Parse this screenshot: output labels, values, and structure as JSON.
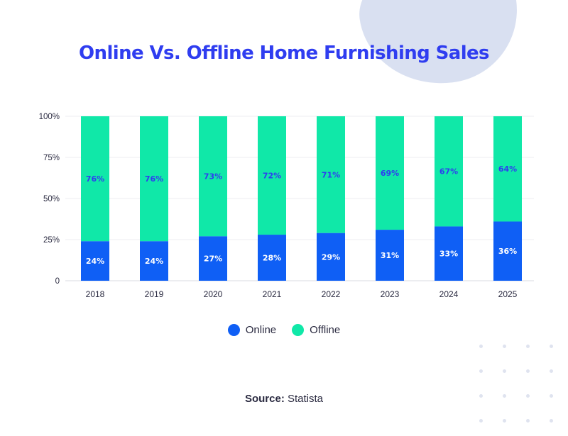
{
  "title": "Online Vs. Offline Home Furnishing Sales",
  "source": {
    "label": "Source:",
    "value": "Statista"
  },
  "colors": {
    "online": "#0f5ff5",
    "offline": "#10e8a8",
    "title": "#2f3df0",
    "label_on_offline": "#2f3df0",
    "label_on_online": "#ffffff"
  },
  "chart_data": {
    "type": "bar",
    "stacked": true,
    "categories": [
      "2018",
      "2019",
      "2020",
      "2021",
      "2022",
      "2023",
      "2024",
      "2025"
    ],
    "series": [
      {
        "name": "Online",
        "values": [
          24,
          24,
          27,
          28,
          29,
          31,
          33,
          36
        ],
        "labels": [
          "24%",
          "24%",
          "27%",
          "28%",
          "29%",
          "31%",
          "33%",
          "36%"
        ]
      },
      {
        "name": "Offline",
        "values": [
          76,
          76,
          73,
          72,
          71,
          69,
          67,
          64
        ],
        "labels": [
          "76%",
          "76%",
          "73%",
          "72%",
          "71%",
          "69%",
          "67%",
          "64%"
        ]
      }
    ],
    "ylim": [
      0,
      100
    ],
    "yticks": [
      0,
      25,
      50,
      75,
      100
    ],
    "ytick_labels": [
      "0",
      "25%",
      "50%",
      "75%",
      "100%"
    ],
    "grid": true,
    "legend_position": "bottom"
  }
}
